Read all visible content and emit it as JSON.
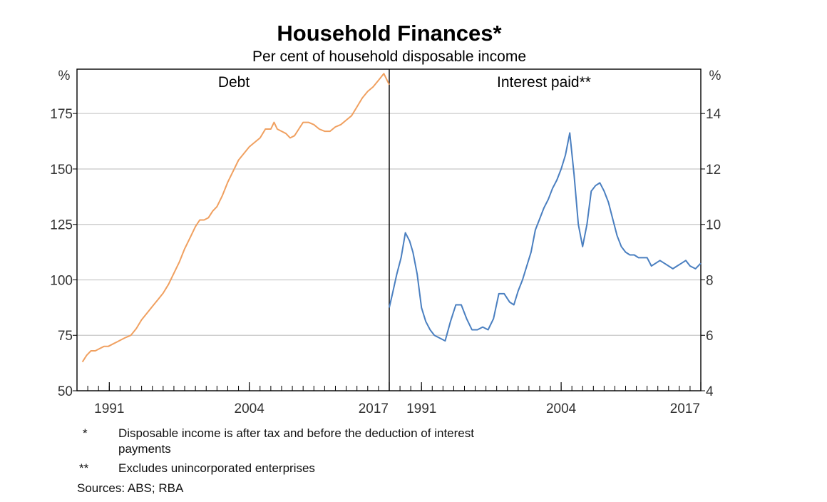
{
  "chart_data": {
    "type": "line",
    "title": "Household Finances*",
    "subtitle": "Per cent of household disposable income",
    "colors": {
      "debt": "#f0a060",
      "interest": "#4a7fc0",
      "grid": "#c8c8c8",
      "axis": "#000000"
    },
    "grid": true,
    "panels": [
      {
        "title": "Debt",
        "axis_side": "left",
        "unit_label": "%",
        "ylim": [
          50,
          195
        ],
        "yticks": [
          50,
          75,
          100,
          125,
          150,
          175
        ],
        "xlim": [
          1988,
          2017
        ],
        "xticks": [
          1991,
          2004,
          2017
        ],
        "series": [
          {
            "color": "#f0a060",
            "x": [
              1988.5,
              1988.9,
              1989.3,
              1989.7,
              1990.1,
              1990.5,
              1990.9,
              1991.3,
              1991.7,
              1992.1,
              1992.5,
              1993,
              1993.5,
              1994,
              1994.5,
              1995,
              1995.5,
              1996,
              1996.5,
              1997,
              1997.5,
              1998,
              1998.5,
              1999,
              1999.4,
              1999.8,
              2000.2,
              2000.6,
              2001,
              2001.5,
              2002,
              2002.5,
              2003,
              2003.5,
              2004,
              2004.5,
              2005,
              2005.5,
              2006,
              2006.3,
              2006.6,
              2007,
              2007.4,
              2007.8,
              2008.2,
              2008.6,
              2009,
              2009.5,
              2010,
              2010.5,
              2011,
              2011.5,
              2012,
              2012.5,
              2013,
              2013.5,
              2014,
              2014.5,
              2015,
              2015.5,
              2016,
              2016.5,
              2017
            ],
            "values": [
              63,
              66,
              68,
              68,
              69,
              70,
              70,
              71,
              72,
              73,
              74,
              75,
              78,
              82,
              85,
              88,
              91,
              94,
              98,
              103,
              108,
              114,
              119,
              124,
              127,
              127,
              128,
              131,
              133,
              138,
              144,
              149,
              154,
              157,
              160,
              162,
              164,
              168,
              168,
              171,
              168,
              167,
              166,
              164,
              165,
              168,
              171,
              171,
              170,
              168,
              167,
              167,
              169,
              170,
              172,
              174,
              178,
              182,
              185,
              187,
              190,
              193,
              188
            ]
          }
        ]
      },
      {
        "title": "Interest paid**",
        "axis_side": "right",
        "unit_label": "%",
        "ylim": [
          4,
          15.6
        ],
        "yticks": [
          4,
          6,
          8,
          10,
          12,
          14
        ],
        "xlim": [
          1988,
          2017
        ],
        "xticks": [
          1991,
          2004,
          2017
        ],
        "series": [
          {
            "color": "#4a7fc0",
            "x": [
              1988,
              1988.3,
              1988.7,
              1989.1,
              1989.5,
              1989.9,
              1990.2,
              1990.6,
              1991,
              1991.4,
              1991.8,
              1992.2,
              1992.7,
              1993.2,
              1993.7,
              1994.2,
              1994.7,
              1995.2,
              1995.7,
              1996.2,
              1996.7,
              1997.2,
              1997.7,
              1998.2,
              1998.7,
              1999.2,
              1999.6,
              2000,
              2000.4,
              2000.8,
              2001.2,
              2001.6,
              2002,
              2002.4,
              2002.8,
              2003.2,
              2003.6,
              2004,
              2004.4,
              2004.8,
              2005.2,
              2005.6,
              2006,
              2006.4,
              2006.8,
              2007.2,
              2007.6,
              2008,
              2008.4,
              2008.8,
              2009.2,
              2009.6,
              2010,
              2010.4,
              2010.8,
              2011.2,
              2011.6,
              2012,
              2012.4,
              2012.8,
              2013.2,
              2013.6,
              2014,
              2014.4,
              2014.8,
              2015.2,
              2015.6,
              2016,
              2016.5,
              2017
            ],
            "values": [
              7,
              7.5,
              8.2,
              8.8,
              9.7,
              9.4,
              9,
              8.2,
              7,
              6.5,
              6.2,
              6,
              5.9,
              5.8,
              6.5,
              7.1,
              7.1,
              6.6,
              6.2,
              6.2,
              6.3,
              6.2,
              6.6,
              7.5,
              7.5,
              7.2,
              7.1,
              7.6,
              8,
              8.5,
              9,
              9.8,
              10.2,
              10.6,
              10.9,
              11.3,
              11.6,
              12,
              12.5,
              13.3,
              11.8,
              10,
              9.2,
              10,
              11.2,
              11.4,
              11.5,
              11.2,
              10.8,
              10.2,
              9.6,
              9.2,
              9,
              8.9,
              8.9,
              8.8,
              8.8,
              8.8,
              8.5,
              8.6,
              8.7,
              8.6,
              8.5,
              8.4,
              8.5,
              8.6,
              8.7,
              8.5,
              8.4,
              8.6
            ]
          }
        ]
      }
    ],
    "notes": [
      {
        "marker": "*",
        "lines": [
          "Disposable income is after tax and before the deduction of interest",
          "payments"
        ]
      },
      {
        "marker": "**",
        "lines": [
          "Excludes unincorporated enterprises"
        ]
      }
    ],
    "sources": "Sources: ABS; RBA"
  }
}
